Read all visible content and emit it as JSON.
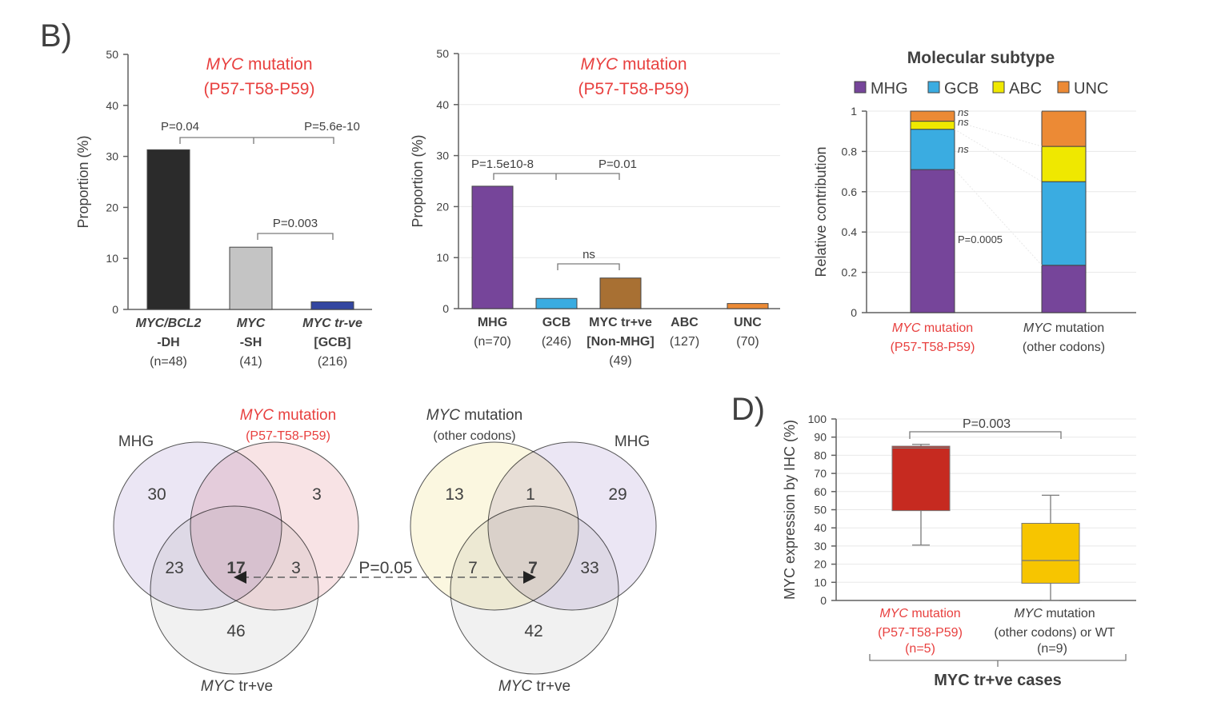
{
  "panel_labels": {
    "b": "B)",
    "d": "D)"
  },
  "colors": {
    "red_text": "#e8403f",
    "mhg": "#76459a",
    "gcb": "#3aace1",
    "abc": "#efe800",
    "unc": "#ec8a35"
  },
  "chart_data": [
    {
      "type": "bar",
      "title_italic": "MYC",
      "title_rest": " mutation",
      "subtitle": "(P57-T58-P59)",
      "ylabel": "Proportion (%)",
      "ylim": [
        0,
        50
      ],
      "yticks": [
        "0",
        "10",
        "20",
        "30",
        "40",
        "50"
      ],
      "grid": false,
      "categories": [
        [
          "MYC/BCL2",
          "-DH",
          "(n=48)"
        ],
        [
          "MYC",
          "-SH",
          "(41)"
        ],
        [
          "MYC tr-ve",
          "[GCB]",
          "(216)"
        ]
      ],
      "values": [
        31.3,
        12.2,
        1.5
      ],
      "colors": [
        "#2b2b2b",
        "#c4c4c4",
        "#3346a0"
      ],
      "annotations": [
        "P=0.04",
        "P=5.6e-10",
        "P=0.003"
      ]
    },
    {
      "type": "bar",
      "title_italic": "MYC",
      "title_rest": " mutation",
      "subtitle": "(P57-T58-P59)",
      "ylabel": "Proportion (%)",
      "ylim": [
        0,
        50
      ],
      "yticks": [
        "0",
        "10",
        "20",
        "30",
        "40",
        "50"
      ],
      "grid": true,
      "categories": [
        [
          "MHG",
          "(n=70)"
        ],
        [
          "GCB",
          "(246)"
        ],
        [
          "MYC tr+ve",
          "[Non-MHG]",
          "(49)"
        ],
        [
          "ABC",
          "(127)"
        ],
        [
          "UNC",
          "(70)"
        ]
      ],
      "values": [
        24.0,
        2.0,
        6.0,
        0,
        1.0
      ],
      "colors": [
        "#76459a",
        "#3aace1",
        "#a87033",
        "#888888",
        "#ec8a35"
      ],
      "annotations": [
        "P=1.5e10-8",
        "P=0.01",
        "ns"
      ]
    },
    {
      "type": "bar",
      "stacked": true,
      "title": "Molecular subtype",
      "ylabel": "Relative contribution",
      "ylim": [
        0,
        1
      ],
      "yticks": [
        "0",
        "0.2",
        "0.4",
        "0.6",
        "0.8",
        "1"
      ],
      "grid": true,
      "legend": [
        "MHG",
        "GCB",
        "ABC",
        "UNC"
      ],
      "legend_placement": "top",
      "categories": [
        [
          "MYC",
          " mutation",
          "(P57-T58-P59)"
        ],
        [
          "MYC",
          " mutation",
          "(other codons)"
        ]
      ],
      "series": [
        {
          "name": "MHG",
          "values": [
            0.71,
            0.235
          ],
          "color": "#76459a"
        },
        {
          "name": "GCB",
          "values": [
            0.2,
            0.415
          ],
          "color": "#3aace1"
        },
        {
          "name": "ABC",
          "values": [
            0.04,
            0.175
          ],
          "color": "#efe800"
        },
        {
          "name": "UNC",
          "values": [
            0.05,
            0.175
          ],
          "color": "#ec8a35"
        }
      ],
      "annotations": [
        "ns",
        "ns",
        "ns",
        "P=0.0005"
      ]
    },
    {
      "type": "box",
      "ylabel": "MYC expression by IHC (%)",
      "ylim": [
        0,
        100
      ],
      "yticks": [
        "0",
        "10",
        "20",
        "30",
        "40",
        "50",
        "60",
        "70",
        "80",
        "90",
        "100"
      ],
      "grid": true,
      "categories": [
        [
          "MYC",
          " mutation",
          "(P57-T58-P59)",
          "(n=5)"
        ],
        [
          "MYC",
          " mutation",
          "(other codons) or WT",
          "(n=9)"
        ]
      ],
      "boxes": [
        {
          "min": 30.5,
          "q1": 49.5,
          "median": 84,
          "q3": 85,
          "max": 86,
          "color": "#c62a20"
        },
        {
          "min": 0,
          "q1": 9.5,
          "median": 22,
          "q3": 42.5,
          "max": 58,
          "color": "#f7c500"
        }
      ],
      "annotation": "P=0.003",
      "group_label": "MYC tr+ve cases"
    }
  ],
  "venn": {
    "left": {
      "sets": [
        {
          "label": "MHG",
          "color": "#e4def0"
        },
        {
          "label_italic": "MYC",
          "label_rest": " mutation",
          "sublabel": "(P57-T58-P59)",
          "color": "#f5dadc"
        },
        {
          "label_italic": "MYC",
          "label_rest": " tr+ve",
          "color": "#ececec"
        }
      ],
      "counts": {
        "mhg_only": "30",
        "mut_only": "3",
        "mhg_tr": "23",
        "all": "17",
        "mut_tr": "3",
        "tr_only": "46"
      }
    },
    "right": {
      "sets": [
        {
          "label_italic": "MYC",
          "label_rest": " mutation",
          "sublabel": "(other codons)",
          "color": "#f9f4d6"
        },
        {
          "label": "MHG",
          "color": "#e4def0"
        },
        {
          "label_italic": "MYC",
          "label_rest": " tr+ve",
          "color": "#ececec"
        }
      ],
      "counts": {
        "mut_only": "13",
        "mut_mhg": "1",
        "mhg_only": "29",
        "mut_tr": "7",
        "all": "7",
        "mhg_tr": "33",
        "tr_only": "42"
      }
    },
    "comparison": "P=0.05"
  }
}
